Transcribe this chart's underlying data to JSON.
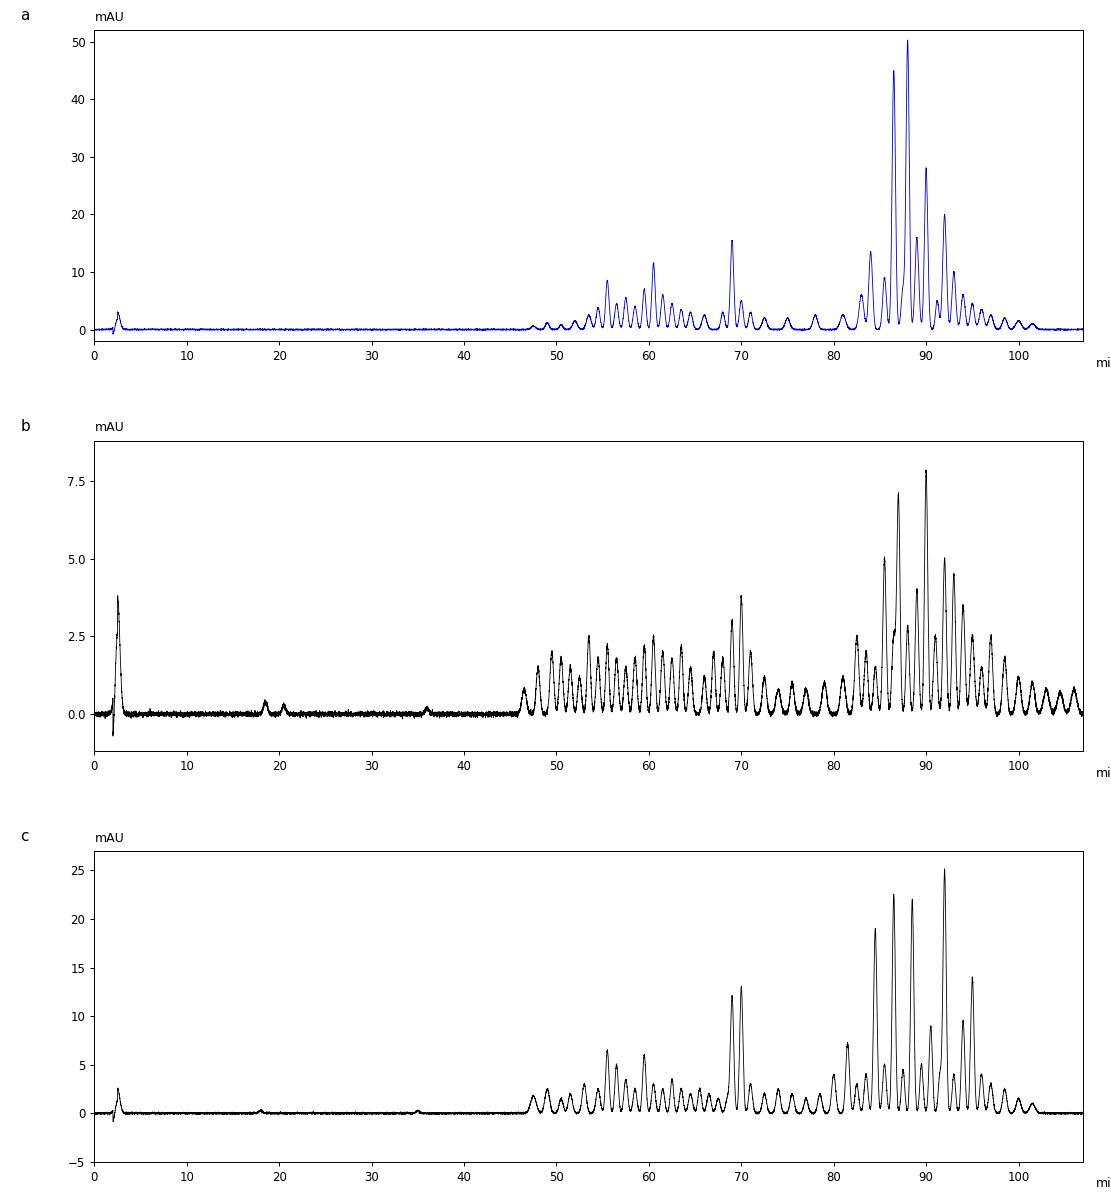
{
  "panel_labels": [
    "a",
    "b",
    "c"
  ],
  "xlabel": "min",
  "ylabel": "mAU",
  "line_color_a": "#0000cc",
  "line_color_bc": "#000000",
  "line_width": 0.6,
  "plot_a": {
    "xlim": [
      0,
      107
    ],
    "ylim": [
      -2,
      52
    ],
    "yticks": [
      0,
      10,
      20,
      30,
      40,
      50
    ],
    "xticks": [
      0,
      10,
      20,
      30,
      40,
      50,
      60,
      70,
      80,
      90,
      100
    ]
  },
  "plot_b": {
    "xlim": [
      0,
      107
    ],
    "ylim": [
      -1.2,
      8.8
    ],
    "yticks": [
      0.0,
      2.5,
      5.0,
      7.5
    ],
    "xticks": [
      0,
      10,
      20,
      30,
      40,
      50,
      60,
      70,
      80,
      90,
      100
    ]
  },
  "plot_c": {
    "xlim": [
      0,
      107
    ],
    "ylim": [
      -5,
      27
    ],
    "yticks": [
      -5,
      0,
      5,
      10,
      15,
      20,
      25
    ],
    "xticks": [
      0,
      10,
      20,
      30,
      40,
      50,
      60,
      70,
      80,
      90,
      100
    ]
  }
}
